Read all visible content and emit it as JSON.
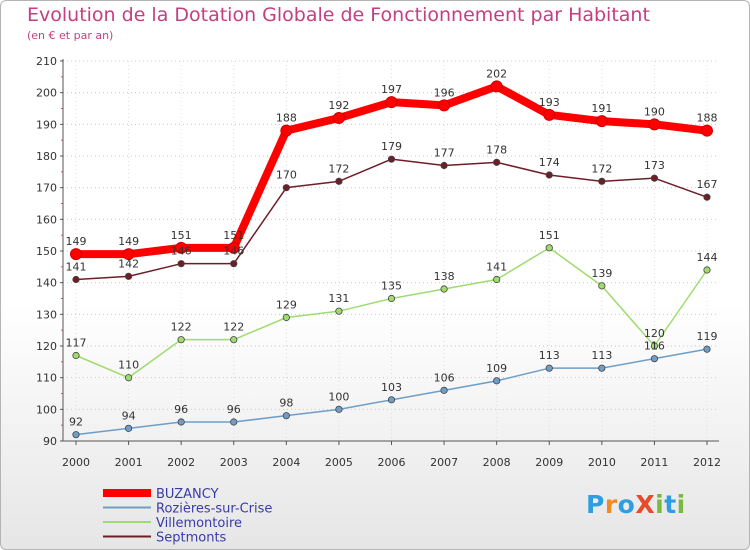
{
  "title": "Evolution de la Dotation Globale de Fonctionnement par Habitant",
  "subtitle": "(en € et par an)",
  "logo": {
    "text": "ProXiti",
    "letters": [
      {
        "ch": "P",
        "color": "#2f9ee0"
      },
      {
        "ch": "r",
        "color": "#f08a24"
      },
      {
        "ch": "o",
        "color": "#2f9ee0"
      },
      {
        "ch": "X",
        "color": "#e84a2a"
      },
      {
        "ch": "i",
        "color": "#7bb840"
      },
      {
        "ch": "t",
        "color": "#2f9ee0"
      },
      {
        "ch": "i",
        "color": "#7bb840"
      }
    ]
  },
  "chart_data": {
    "type": "line",
    "title": "Evolution de la Dotation Globale de Fonctionnement par Habitant",
    "subtitle": "(en € et par an)",
    "xlabel": "",
    "ylabel": "",
    "ylim": [
      90,
      210
    ],
    "yticks": [
      90,
      100,
      110,
      120,
      130,
      140,
      150,
      160,
      170,
      180,
      190,
      200,
      210
    ],
    "grid": "horizontal-dotted",
    "legend_position": "bottom-left",
    "x": [
      "2000",
      "2001",
      "2002",
      "2003",
      "2004",
      "2005",
      "2006",
      "2007",
      "2008",
      "2009",
      "2010",
      "2011",
      "2012"
    ],
    "series": [
      {
        "name": "BUZANCY",
        "color": "#ff0000",
        "values": [
          149,
          149,
          151,
          151,
          188,
          192,
          197,
          196,
          202,
          193,
          191,
          190,
          188
        ]
      },
      {
        "name": "Rozières-sur-Crise",
        "color": "#6e9ec8",
        "values": [
          92,
          94,
          96,
          96,
          98,
          100,
          103,
          106,
          109,
          113,
          113,
          116,
          119
        ]
      },
      {
        "name": "Villemontoire",
        "color": "#9edc6e",
        "values": [
          117,
          110,
          122,
          122,
          129,
          131,
          135,
          138,
          141,
          151,
          139,
          120,
          144
        ]
      },
      {
        "name": "Septmonts",
        "color": "#6e1e28",
        "values": [
          141,
          142,
          146,
          146,
          170,
          172,
          179,
          177,
          178,
          174,
          172,
          173,
          167
        ]
      }
    ]
  }
}
